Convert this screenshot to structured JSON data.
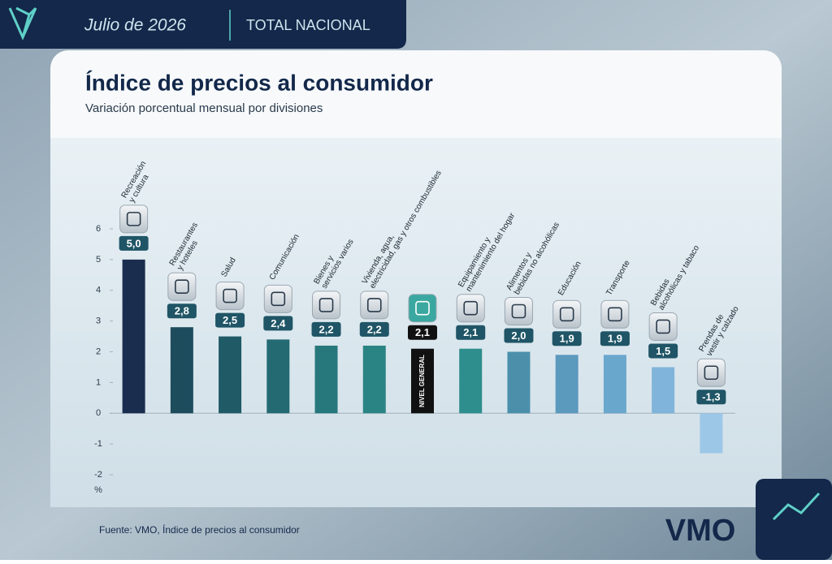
{
  "header": {
    "period": "Julio de 2026",
    "scope": "TOTAL NACIONAL"
  },
  "chart_data": {
    "type": "bar",
    "title": "Índice de precios al consumidor",
    "subtitle": "Variación porcentual mensual por divisiones",
    "y_unit": "%",
    "categories": [
      "Recreación y cultura",
      "Restaurantes y hoteles",
      "Salud",
      "Comunicación",
      "Bienes y servicios varios",
      "Vivienda, agua, electricidad, gas y otros combustibles",
      "NIVEL GENERAL",
      "Equipamiento y mantenimiento del hogar",
      "Alimentos y bebidas no alcohólicas",
      "Educación",
      "Transporte",
      "Bebidas alcohólicas y tabaco",
      "Prendas de vestir y calzado"
    ],
    "values": [
      5.0,
      2.8,
      2.5,
      2.4,
      2.2,
      2.2,
      2.1,
      2.1,
      2.0,
      1.9,
      1.9,
      1.5,
      -1.3
    ],
    "value_labels": [
      "5,0",
      "2,8",
      "2,5",
      "2,4",
      "2,2",
      "2,2",
      "2,1",
      "2,1",
      "2,0",
      "1,9",
      "1,9",
      "1,5",
      "-1,3"
    ],
    "colors": [
      "#1b2d4f",
      "#1d4c5d",
      "#1f5a66",
      "#236a72",
      "#27787c",
      "#2a8484",
      "#111111",
      "#2e8d8d",
      "#4b8fab",
      "#5b99bd",
      "#6aa7cd",
      "#80b4da",
      "#9dc7e7"
    ],
    "highlight": 6,
    "ylim": [
      -2,
      6
    ],
    "yticks": [
      -2,
      -1,
      0,
      1,
      2,
      3,
      4,
      5,
      6
    ]
  },
  "footer": {
    "source": "Fuente: VMO, Índice de precios al consumidor",
    "logo": "VMO"
  }
}
